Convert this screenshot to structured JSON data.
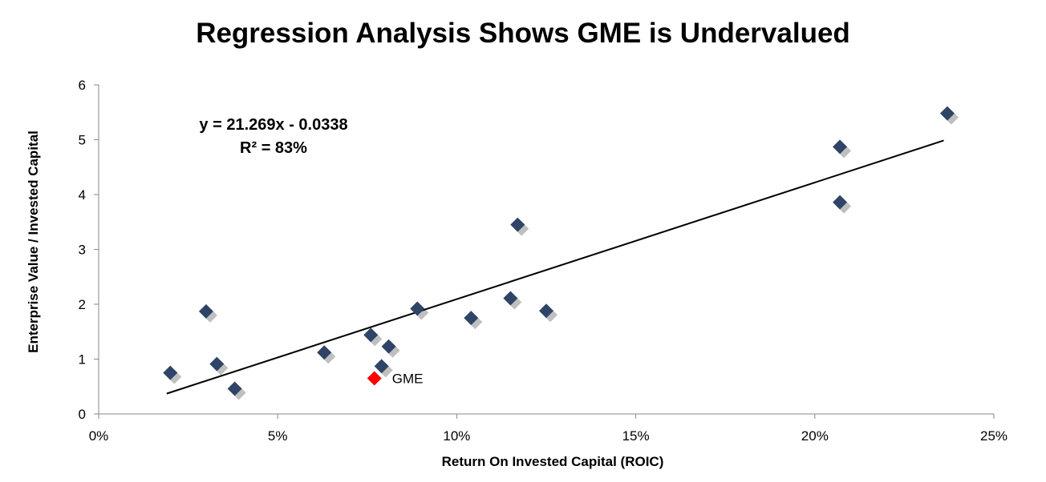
{
  "chart_data": {
    "type": "scatter",
    "title": "Regression Analysis Shows GME is Undervalued",
    "xlabel": "Return On Invested Capital (ROIC)",
    "ylabel": "Enterprise Value / Invested Capital",
    "xlim": [
      0,
      0.25
    ],
    "ylim": [
      0,
      6
    ],
    "x_ticks": [
      0,
      0.05,
      0.1,
      0.15,
      0.2,
      0.25
    ],
    "x_tick_labels": [
      "0%",
      "5%",
      "10%",
      "15%",
      "20%",
      "25%"
    ],
    "y_ticks": [
      0,
      1,
      2,
      3,
      4,
      5,
      6
    ],
    "y_tick_labels": [
      "0",
      "1",
      "2",
      "3",
      "4",
      "5",
      "6"
    ],
    "grid": false,
    "series": [
      {
        "color": "#2F4467",
        "marker": "diamond",
        "points": [
          {
            "x": 0.02,
            "y": 0.75
          },
          {
            "x": 0.03,
            "y": 1.87
          },
          {
            "x": 0.033,
            "y": 0.91
          },
          {
            "x": 0.038,
            "y": 0.46
          },
          {
            "x": 0.063,
            "y": 1.12
          },
          {
            "x": 0.076,
            "y": 1.44
          },
          {
            "x": 0.079,
            "y": 0.87
          },
          {
            "x": 0.081,
            "y": 1.23
          },
          {
            "x": 0.089,
            "y": 1.92
          },
          {
            "x": 0.104,
            "y": 1.75
          },
          {
            "x": 0.115,
            "y": 2.11
          },
          {
            "x": 0.117,
            "y": 3.45
          },
          {
            "x": 0.125,
            "y": 1.88
          },
          {
            "x": 0.207,
            "y": 4.87
          },
          {
            "x": 0.207,
            "y": 3.86
          },
          {
            "x": 0.237,
            "y": 5.48
          }
        ]
      },
      {
        "color": "#FF0000",
        "marker": "diamond",
        "points": [
          {
            "x": 0.077,
            "y": 0.65,
            "label": "GME"
          }
        ]
      }
    ],
    "trendline": {
      "x_range": [
        0.019,
        0.236
      ],
      "slope": 21.269,
      "intercept": -0.0338,
      "color": "#000000"
    },
    "equation_lines": [
      "y = 21.269x - 0.0338",
      "R² = 83%"
    ],
    "shadow_color": "#BFBFBF"
  }
}
